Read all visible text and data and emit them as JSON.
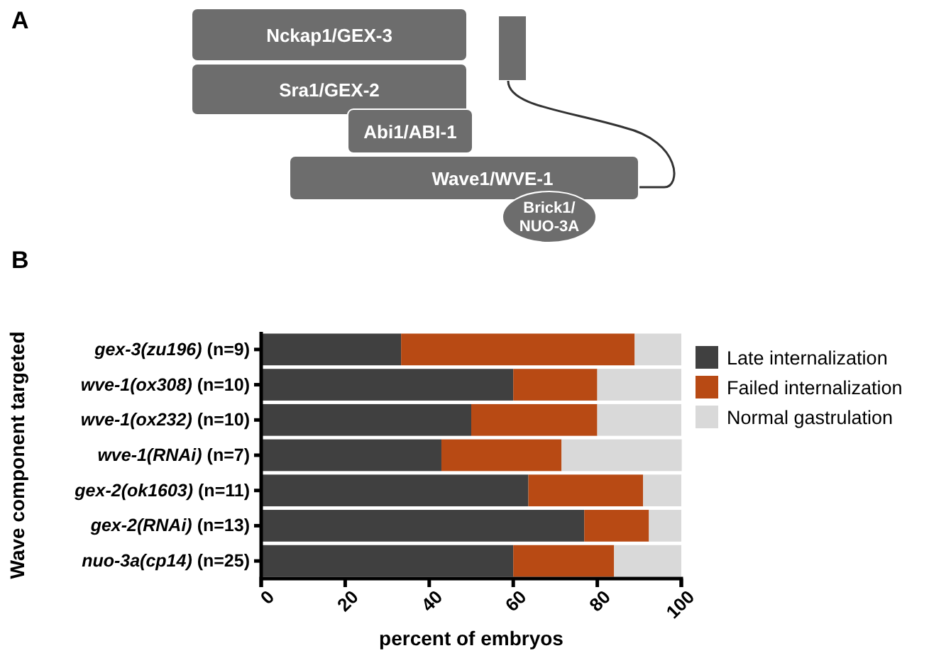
{
  "chart_data": {
    "type": "bar",
    "orientation": "horizontal",
    "stacked": true,
    "xlabel": "percent of embryos",
    "ylabel": "Wave component targeted",
    "categories": [
      "gex-3(zu196) (n=9)",
      "wve-1(ox308) (n=10)",
      "wve-1(ox232) (n=10)",
      "wve-1(RNAi) (n=7)",
      "gex-2(ok1603) (n=11)",
      "gex-2(RNAi) (n=13)",
      "nuo-3a(cp14) (n=25)"
    ],
    "series": [
      {
        "name": "Late internalization",
        "color": "#404040",
        "values": [
          33.3,
          60,
          50,
          42.9,
          63.6,
          76.9,
          60
        ]
      },
      {
        "name": "Failed internalization",
        "color": "#b84a14",
        "values": [
          55.6,
          20,
          30,
          28.6,
          27.3,
          15.4,
          24
        ]
      },
      {
        "name": "Normal gastrulation",
        "color": "#d9d9d9",
        "values": [
          11.1,
          20,
          20,
          28.6,
          9.1,
          7.7,
          16
        ]
      }
    ],
    "xlim": [
      0,
      100
    ],
    "xticks": [
      0,
      20,
      40,
      60,
      80,
      100
    ],
    "legend": "top right",
    "annotations": [
      "A",
      "B",
      "Nckap1/GEX-3",
      "Sra1/GEX-2",
      "Abi1/ABI-1",
      "Wave1/WVE-1",
      "Brick1/\nNUO-3A"
    ]
  }
}
